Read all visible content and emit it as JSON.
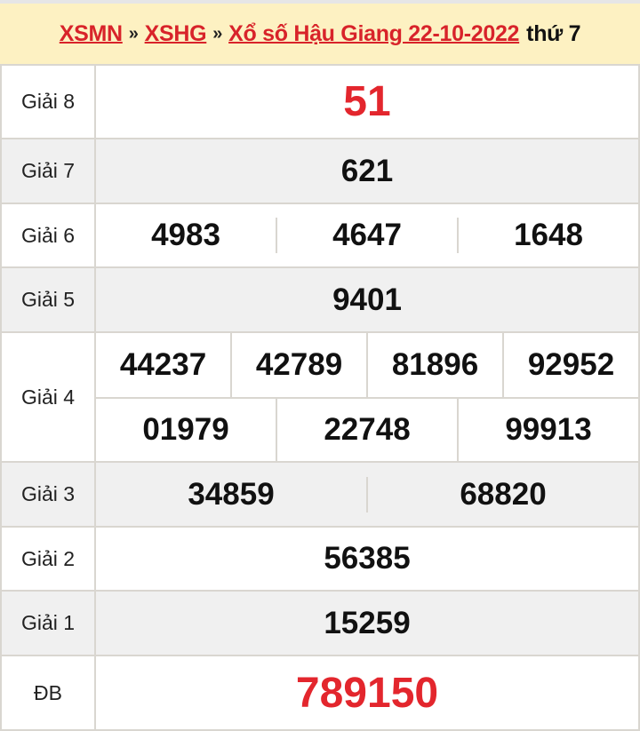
{
  "header": {
    "links": [
      "XSMN",
      "XSHG",
      "Xổ số Hậu Giang 22-10-2022"
    ],
    "separator": "»",
    "day": "thứ 7"
  },
  "rows": [
    {
      "label": "Giải 8",
      "numbers": [
        "51"
      ]
    },
    {
      "label": "Giải 7",
      "numbers": [
        "621"
      ]
    },
    {
      "label": "Giải 6",
      "numbers": [
        "4983",
        "4647",
        "1648"
      ]
    },
    {
      "label": "Giải 5",
      "numbers": [
        "9401"
      ]
    },
    {
      "label": "Giải 4",
      "numbers": [
        "44237",
        "42789",
        "81896",
        "92952",
        "01979",
        "22748",
        "99913"
      ]
    },
    {
      "label": "Giải 3",
      "numbers": [
        "34859",
        "68820"
      ]
    },
    {
      "label": "Giải 2",
      "numbers": [
        "56385"
      ]
    },
    {
      "label": "Giải 1",
      "numbers": [
        "15259"
      ]
    },
    {
      "label": "ĐB",
      "numbers": [
        "789150"
      ]
    }
  ],
  "colors": {
    "accent": "#e3262d",
    "header_bg": "#fdf1c2"
  }
}
